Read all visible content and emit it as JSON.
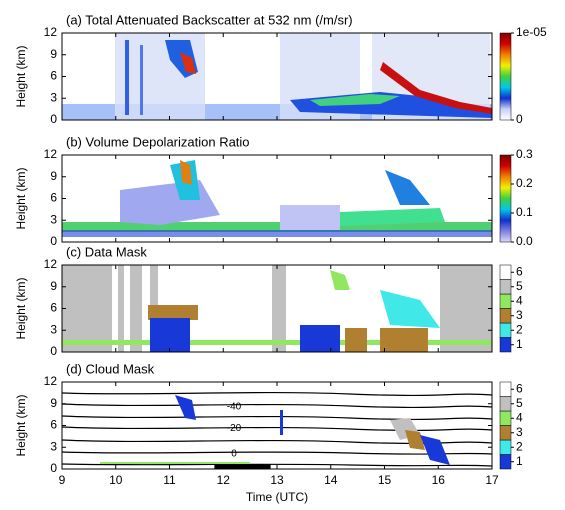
{
  "chart_data": [
    {
      "type": "heatmap",
      "title": "(a) Total Attenuated Backscatter at 532 nm (/m/sr)",
      "ylabel": "Height (km)",
      "xlim": [
        9,
        17
      ],
      "xticks": [
        9,
        10,
        11,
        12,
        13,
        14,
        15,
        16,
        17
      ],
      "ylim": [
        0,
        12
      ],
      "yticks": [
        0,
        3,
        6,
        9,
        12
      ],
      "colorbar": {
        "lim": [
          0,
          1e-05
        ],
        "ticks": [
          0,
          {
            "value": 1e-05,
            "label": "1e-05"
          }
        ],
        "colors": [
          "#ffffff",
          "#c8d0f8",
          "#1030d0",
          "#00c8e8",
          "#40d040",
          "#f0f000",
          "#f08000",
          "#d00000",
          "#800000"
        ]
      }
    },
    {
      "type": "heatmap",
      "title": "(b) Volume Depolarization Ratio",
      "ylabel": "Height (km)",
      "xlim": [
        9,
        17
      ],
      "xticks": [
        9,
        10,
        11,
        12,
        13,
        14,
        15,
        16,
        17
      ],
      "ylim": [
        0,
        12
      ],
      "yticks": [
        0,
        3,
        6,
        9,
        12
      ],
      "colorbar": {
        "lim": [
          0,
          0.3
        ],
        "ticks": [
          {
            "value": 0,
            "label": "0.0"
          },
          0.1,
          0.2,
          0.3
        ],
        "colors": [
          "#d8d8f8",
          "#8080e0",
          "#1030d0",
          "#00c8e8",
          "#40d040",
          "#f0f000",
          "#f08000",
          "#d00000",
          "#800000"
        ]
      }
    },
    {
      "type": "heatmap",
      "title": "(c) Data Mask",
      "ylabel": "Height (km)",
      "xlim": [
        9,
        17
      ],
      "xticks": [
        9,
        10,
        11,
        12,
        13,
        14,
        15,
        16,
        17
      ],
      "ylim": [
        0,
        12
      ],
      "yticks": [
        0,
        3,
        6,
        9,
        12
      ],
      "colorbar": {
        "lim": [
          0.5,
          6.5
        ],
        "ticks": [
          1,
          2,
          3,
          4,
          5,
          6
        ],
        "discrete": true,
        "colors": [
          "#1838d8",
          "#40e8e8",
          "#b08030",
          "#90e860",
          "#c0c0c0",
          "#ffffff"
        ]
      }
    },
    {
      "type": "heatmap",
      "title": "(d) Cloud Mask",
      "ylabel": "Height (km)",
      "xlabel": "Time (UTC)",
      "xlim": [
        9,
        17
      ],
      "xticks": [
        9,
        10,
        11,
        12,
        13,
        14,
        15,
        16,
        17
      ],
      "ylim": [
        0,
        12
      ],
      "yticks": [
        0,
        3,
        6,
        9,
        12
      ],
      "colorbar": {
        "lim": [
          0.5,
          6.5
        ],
        "ticks": [
          1,
          2,
          3,
          4,
          5,
          6
        ],
        "discrete": true,
        "colors": [
          "#1838d8",
          "#40e8e8",
          "#b08030",
          "#90e860",
          "#c0c0c0",
          "#ffffff"
        ]
      },
      "annotations": [
        {
          "text": "-40",
          "x": 12.2,
          "y": 8.6
        },
        {
          "text": "-20",
          "x": 12.2,
          "y": 5.6
        },
        {
          "text": "0",
          "x": 12.2,
          "y": 2.1
        }
      ]
    }
  ]
}
